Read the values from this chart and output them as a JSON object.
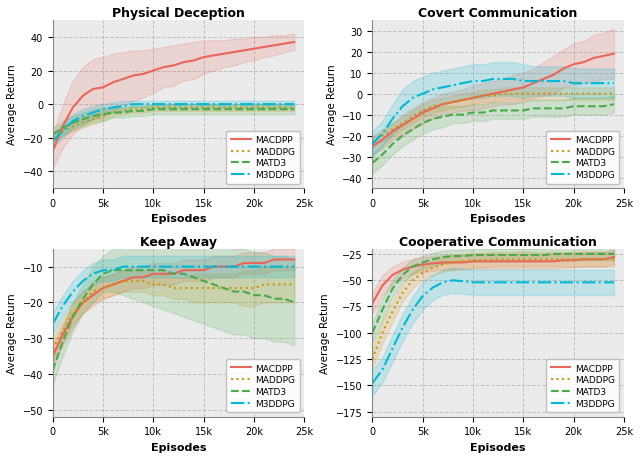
{
  "episodes": [
    0,
    1000,
    2000,
    3000,
    4000,
    5000,
    6000,
    7000,
    8000,
    9000,
    10000,
    11000,
    12000,
    13000,
    14000,
    15000,
    16000,
    17000,
    18000,
    19000,
    20000,
    21000,
    22000,
    23000,
    24000
  ],
  "physical_deception": {
    "title": "Physical Deception",
    "ylim": [
      -50,
      50
    ],
    "yticks": [
      -40,
      -20,
      0,
      20,
      40
    ],
    "MACDPP": {
      "mean": [
        -28,
        -13,
        -2,
        5,
        9,
        10,
        13,
        15,
        17,
        18,
        20,
        22,
        23,
        25,
        26,
        28,
        29,
        30,
        31,
        32,
        33,
        34,
        35,
        36,
        37
      ],
      "std": [
        10,
        13,
        16,
        17,
        18,
        18,
        17,
        16,
        15,
        14,
        13,
        12,
        12,
        11,
        11,
        10,
        9,
        8,
        8,
        7,
        7,
        6,
        6,
        5,
        5
      ]
    },
    "MADDPG": {
      "mean": [
        -20,
        -16,
        -13,
        -11,
        -9,
        -7,
        -5,
        -4,
        -3,
        -3,
        -2,
        -2,
        -2,
        -2,
        -2,
        -2,
        -2,
        -2,
        -2,
        -2,
        -2,
        -2,
        -2,
        -2,
        -2
      ],
      "std": [
        3,
        3,
        3,
        3,
        3,
        3,
        2,
        2,
        2,
        2,
        2,
        2,
        2,
        2,
        2,
        2,
        2,
        2,
        2,
        2,
        2,
        2,
        2,
        2,
        2
      ]
    },
    "MATD3": {
      "mean": [
        -18,
        -14,
        -11,
        -9,
        -7,
        -6,
        -5,
        -5,
        -4,
        -4,
        -3,
        -3,
        -3,
        -3,
        -3,
        -3,
        -3,
        -3,
        -3,
        -3,
        -3,
        -3,
        -3,
        -3,
        -3
      ],
      "std": [
        4,
        4,
        4,
        4,
        4,
        4,
        3,
        3,
        3,
        3,
        3,
        3,
        3,
        3,
        3,
        3,
        3,
        3,
        3,
        3,
        3,
        3,
        3,
        3,
        3
      ]
    },
    "M3DDPG": {
      "mean": [
        -22,
        -16,
        -10,
        -7,
        -5,
        -3,
        -2,
        -1,
        0,
        0,
        0,
        0,
        0,
        0,
        0,
        0,
        0,
        0,
        0,
        0,
        0,
        0,
        0,
        0,
        0
      ],
      "std": [
        4,
        4,
        4,
        4,
        4,
        3,
        3,
        3,
        2,
        2,
        2,
        2,
        2,
        2,
        2,
        2,
        2,
        2,
        2,
        2,
        2,
        2,
        2,
        2,
        2
      ]
    }
  },
  "covert_communication": {
    "title": "Covert Communication",
    "ylim": [
      -45,
      35
    ],
    "yticks": [
      -40,
      -30,
      -20,
      -10,
      0,
      10,
      20,
      30
    ],
    "MACDPP": {
      "mean": [
        -25,
        -22,
        -18,
        -15,
        -12,
        -9,
        -7,
        -5,
        -4,
        -3,
        -2,
        -1,
        0,
        1,
        2,
        3,
        5,
        7,
        9,
        12,
        14,
        15,
        17,
        18,
        19
      ],
      "std": [
        4,
        4,
        4,
        5,
        5,
        5,
        5,
        5,
        5,
        5,
        6,
        6,
        6,
        6,
        7,
        7,
        7,
        8,
        9,
        9,
        10,
        10,
        11,
        11,
        12
      ]
    },
    "MADDPG": {
      "mean": [
        -23,
        -20,
        -17,
        -14,
        -11,
        -8,
        -6,
        -5,
        -4,
        -3,
        -2,
        -1,
        -1,
        0,
        0,
        0,
        0,
        0,
        0,
        0,
        0,
        0,
        0,
        0,
        0
      ],
      "std": [
        3,
        3,
        3,
        3,
        3,
        3,
        3,
        3,
        3,
        3,
        3,
        3,
        3,
        3,
        3,
        3,
        3,
        3,
        3,
        3,
        3,
        3,
        3,
        3,
        3
      ]
    },
    "MATD3": {
      "mean": [
        -33,
        -29,
        -24,
        -20,
        -17,
        -14,
        -12,
        -11,
        -10,
        -10,
        -9,
        -9,
        -8,
        -8,
        -8,
        -8,
        -7,
        -7,
        -7,
        -7,
        -6,
        -6,
        -6,
        -6,
        -5
      ],
      "std": [
        5,
        5,
        5,
        5,
        5,
        5,
        5,
        5,
        4,
        4,
        4,
        4,
        4,
        4,
        4,
        4,
        4,
        4,
        4,
        4,
        4,
        4,
        4,
        4,
        4
      ]
    },
    "M3DDPG": {
      "mean": [
        -24,
        -19,
        -12,
        -6,
        -2,
        0,
        2,
        3,
        4,
        5,
        6,
        6,
        7,
        7,
        7,
        6,
        6,
        6,
        6,
        6,
        5,
        5,
        5,
        5,
        5
      ],
      "std": [
        6,
        6,
        7,
        8,
        8,
        8,
        8,
        8,
        8,
        8,
        8,
        8,
        8,
        8,
        8,
        8,
        7,
        7,
        7,
        7,
        7,
        7,
        7,
        7,
        7
      ]
    }
  },
  "keep_away": {
    "title": "Keep Away",
    "ylim": [
      -52,
      -5
    ],
    "yticks": [
      -50,
      -40,
      -30,
      -20,
      -10
    ],
    "MACDPP": {
      "mean": [
        -35,
        -29,
        -24,
        -20,
        -18,
        -16,
        -15,
        -14,
        -13,
        -13,
        -12,
        -12,
        -12,
        -11,
        -11,
        -11,
        -10,
        -10,
        -10,
        -9,
        -9,
        -9,
        -8,
        -8,
        -8
      ],
      "std": [
        3,
        3,
        3,
        3,
        3,
        3,
        3,
        3,
        3,
        3,
        3,
        3,
        3,
        3,
        3,
        3,
        3,
        3,
        3,
        3,
        3,
        3,
        3,
        3,
        3
      ]
    },
    "MADDPG": {
      "mean": [
        -33,
        -28,
        -23,
        -20,
        -17,
        -16,
        -15,
        -14,
        -14,
        -14,
        -15,
        -15,
        -16,
        -16,
        -16,
        -16,
        -16,
        -16,
        -16,
        -16,
        -16,
        -15,
        -15,
        -15,
        -15
      ],
      "std": [
        3,
        3,
        3,
        3,
        3,
        3,
        3,
        3,
        3,
        3,
        3,
        3,
        3,
        3,
        4,
        4,
        4,
        4,
        4,
        5,
        5,
        5,
        5,
        5,
        5
      ]
    },
    "MATD3": {
      "mean": [
        -39,
        -31,
        -24,
        -19,
        -15,
        -12,
        -11,
        -11,
        -11,
        -11,
        -11,
        -11,
        -12,
        -12,
        -13,
        -14,
        -15,
        -16,
        -17,
        -17,
        -18,
        -18,
        -19,
        -19,
        -20
      ],
      "std": [
        4,
        4,
        4,
        4,
        5,
        5,
        6,
        7,
        8,
        9,
        10,
        11,
        11,
        12,
        12,
        12,
        12,
        12,
        12,
        12,
        12,
        12,
        12,
        12,
        12
      ]
    },
    "M3DDPG": {
      "mean": [
        -26,
        -21,
        -17,
        -14,
        -12,
        -11,
        -11,
        -10,
        -10,
        -10,
        -10,
        -10,
        -10,
        -10,
        -10,
        -10,
        -10,
        -10,
        -10,
        -10,
        -10,
        -10,
        -10,
        -10,
        -10
      ],
      "std": [
        3,
        3,
        3,
        3,
        3,
        3,
        3,
        3,
        3,
        3,
        3,
        3,
        3,
        3,
        3,
        3,
        3,
        3,
        3,
        3,
        3,
        3,
        3,
        3,
        3
      ]
    }
  },
  "cooperative_communication": {
    "title": "Cooperative Communication",
    "ylim": [
      -180,
      -20
    ],
    "yticks": [
      -175,
      -150,
      -125,
      -100,
      -75,
      -50,
      -25
    ],
    "MACDPP": {
      "mean": [
        -72,
        -55,
        -45,
        -40,
        -37,
        -35,
        -34,
        -33,
        -33,
        -33,
        -32,
        -32,
        -32,
        -32,
        -32,
        -32,
        -32,
        -32,
        -32,
        -31,
        -31,
        -30,
        -30,
        -30,
        -28
      ],
      "std": [
        10,
        10,
        8,
        8,
        7,
        7,
        7,
        7,
        7,
        7,
        7,
        7,
        7,
        7,
        7,
        7,
        7,
        7,
        7,
        7,
        7,
        7,
        7,
        7,
        7
      ]
    },
    "MADDPG": {
      "mean": [
        -125,
        -100,
        -80,
        -62,
        -50,
        -43,
        -38,
        -35,
        -33,
        -32,
        -31,
        -31,
        -30,
        -30,
        -30,
        -30,
        -30,
        -30,
        -30,
        -30,
        -30,
        -30,
        -30,
        -30,
        -30
      ],
      "std": [
        10,
        10,
        10,
        8,
        8,
        7,
        7,
        7,
        7,
        7,
        7,
        7,
        7,
        7,
        7,
        7,
        7,
        7,
        7,
        7,
        7,
        7,
        7,
        7,
        7
      ]
    },
    "MATD3": {
      "mean": [
        -100,
        -78,
        -58,
        -45,
        -37,
        -33,
        -30,
        -28,
        -27,
        -27,
        -26,
        -26,
        -26,
        -26,
        -26,
        -26,
        -26,
        -26,
        -25,
        -25,
        -25,
        -25,
        -25,
        -25,
        -25
      ],
      "std": [
        10,
        10,
        8,
        7,
        7,
        6,
        6,
        6,
        6,
        6,
        6,
        6,
        6,
        6,
        6,
        6,
        6,
        6,
        6,
        6,
        6,
        6,
        6,
        6,
        6
      ]
    },
    "M3DDPG": {
      "mean": [
        -148,
        -135,
        -115,
        -95,
        -78,
        -65,
        -57,
        -52,
        -50,
        -51,
        -52,
        -52,
        -52,
        -52,
        -52,
        -52,
        -52,
        -52,
        -52,
        -52,
        -52,
        -52,
        -52,
        -52,
        -52
      ],
      "std": [
        12,
        12,
        13,
        13,
        13,
        13,
        12,
        12,
        12,
        12,
        12,
        12,
        12,
        12,
        12,
        12,
        12,
        12,
        12,
        12,
        12,
        12,
        12,
        12,
        12
      ]
    }
  },
  "colors": {
    "MACDPP": "#e8665a",
    "MADDPG": "#c9960c",
    "MATD3": "#4aaa4a",
    "M3DDPG": "#00b8d4"
  },
  "linestyles": {
    "MACDPP": "-",
    "MADDPG": ":",
    "MATD3": "--",
    "M3DDPG": "-."
  },
  "linewidths": {
    "MACDPP": 1.5,
    "MADDPG": 1.5,
    "MATD3": 1.5,
    "M3DDPG": 1.5
  },
  "alpha_fill": 0.18,
  "xlabel": "Episodes",
  "ylabel": "Average Return",
  "background_color": "#ebebeb",
  "grid_color": "#bbbbbb",
  "grid_linestyle": "--",
  "grid_alpha": 0.9,
  "grid_linewidth": 0.7
}
